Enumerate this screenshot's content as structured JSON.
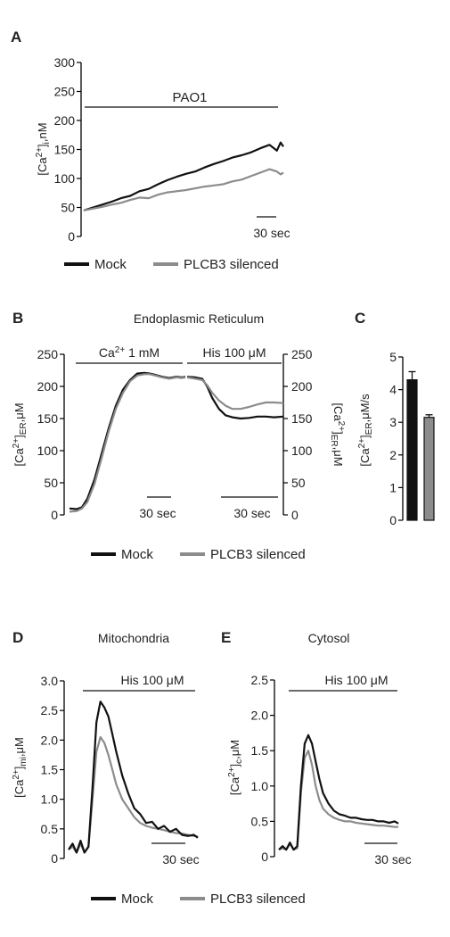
{
  "colors": {
    "mock": "#111111",
    "plcb3": "#8c8c8c",
    "text": "#222222"
  },
  "legend": {
    "mock_label": "Mock",
    "plcb3_label": "PLCB3 silenced"
  },
  "chart_data": [
    {
      "panel": "A",
      "type": "line",
      "ylabel": "[Ca2+]i,nM",
      "ylim": [
        0,
        300
      ],
      "yticks": [
        0,
        50,
        100,
        150,
        200,
        250,
        300
      ],
      "x_unit": "sec",
      "xlim": [
        0,
        215
      ],
      "stim_label": "PAO1",
      "scale_bar": "30 sec",
      "series": [
        {
          "name": "Mock",
          "x": [
            0,
            10,
            20,
            30,
            40,
            50,
            60,
            70,
            80,
            90,
            100,
            110,
            120,
            130,
            140,
            150,
            160,
            170,
            180,
            190,
            200,
            208,
            212,
            215
          ],
          "y": [
            45,
            50,
            55,
            60,
            66,
            70,
            78,
            82,
            90,
            97,
            103,
            108,
            112,
            119,
            125,
            130,
            136,
            140,
            145,
            152,
            158,
            148,
            162,
            155
          ]
        },
        {
          "name": "PLCB3 silenced",
          "x": [
            0,
            10,
            20,
            30,
            40,
            50,
            60,
            70,
            80,
            90,
            100,
            110,
            120,
            130,
            140,
            150,
            160,
            170,
            180,
            190,
            200,
            208,
            212,
            215
          ],
          "y": [
            45,
            48,
            51,
            55,
            58,
            63,
            67,
            66,
            72,
            76,
            78,
            80,
            83,
            86,
            88,
            90,
            95,
            98,
            104,
            110,
            116,
            112,
            107,
            110
          ]
        }
      ]
    },
    {
      "panel": "B",
      "type": "line",
      "title": "Endoplasmic Reticulum",
      "ylabel": "[Ca2+]ER,μM",
      "ylabel_right": "[Ca2+]ER,μM",
      "ylim": [
        0,
        250
      ],
      "yticks": [
        0,
        50,
        100,
        150,
        200,
        250
      ],
      "x_unit": "sec",
      "segments": [
        {
          "stim_label": "Ca2+ 1 mM",
          "scale_bar": "30 sec",
          "xlim": [
            0,
            130
          ],
          "series": [
            {
              "name": "Mock",
              "x": [
                0,
                8,
                14,
                20,
                28,
                36,
                44,
                52,
                60,
                68,
                76,
                84,
                90,
                96,
                104,
                112,
                120,
                126,
                130
              ],
              "y": [
                10,
                9,
                12,
                25,
                55,
                95,
                135,
                170,
                195,
                210,
                220,
                221,
                220,
                218,
                215,
                213,
                215,
                214,
                215
              ]
            },
            {
              "name": "PLCB3 silenced",
              "x": [
                0,
                8,
                14,
                20,
                28,
                36,
                44,
                52,
                60,
                68,
                76,
                84,
                90,
                96,
                104,
                112,
                120,
                126,
                130
              ],
              "y": [
                5,
                6,
                10,
                20,
                48,
                88,
                130,
                165,
                190,
                208,
                217,
                219,
                219,
                217,
                214,
                212,
                214,
                213,
                214
              ]
            }
          ]
        },
        {
          "stim_label": "His 100 μM",
          "scale_bar": "30 sec",
          "xlim": [
            0,
            115
          ],
          "series": [
            {
              "name": "Mock",
              "x": [
                0,
                10,
                18,
                24,
                30,
                38,
                46,
                54,
                64,
                74,
                84,
                94,
                104,
                115
              ],
              "y": [
                215,
                214,
                212,
                200,
                182,
                165,
                155,
                152,
                150,
                151,
                153,
                153,
                152,
                153
              ]
            },
            {
              "name": "PLCB3 silenced",
              "x": [
                0,
                10,
                18,
                24,
                30,
                38,
                46,
                54,
                64,
                74,
                84,
                94,
                104,
                115
              ],
              "y": [
                214,
                212,
                210,
                202,
                190,
                178,
                170,
                165,
                165,
                168,
                172,
                175,
                175,
                174
              ]
            }
          ]
        }
      ]
    },
    {
      "panel": "C",
      "type": "bar",
      "ylabel": "[Ca2+]ER,μM/s",
      "ylim": [
        0,
        5
      ],
      "yticks": [
        0,
        1,
        2,
        3,
        4,
        5
      ],
      "categories": [
        "Mock",
        "PLCB3 silenced"
      ],
      "values": [
        4.3,
        3.15
      ],
      "errors": [
        0.25,
        0.08
      ]
    },
    {
      "panel": "D",
      "type": "line",
      "title": "Mitochondria",
      "ylabel": "[Ca2+]mi,μM",
      "ylim": [
        0,
        3.0
      ],
      "yticks": [
        0,
        0.5,
        1.0,
        1.5,
        2.0,
        2.5,
        3.0
      ],
      "ytick_labels": [
        "0",
        "0.5",
        "1.0",
        "1.5",
        "2.0",
        "2.5",
        "3.0"
      ],
      "x_unit": "sec",
      "xlim": [
        0,
        130
      ],
      "stim_label": "His 100 μM",
      "scale_bar": "30 sec",
      "series": [
        {
          "name": "Mock",
          "x": [
            0,
            4,
            8,
            12,
            16,
            20,
            24,
            28,
            32,
            36,
            40,
            44,
            48,
            54,
            60,
            66,
            72,
            78,
            84,
            90,
            96,
            102,
            108,
            114,
            120,
            126,
            130
          ],
          "y": [
            0.15,
            0.25,
            0.1,
            0.3,
            0.1,
            0.2,
            1.2,
            2.3,
            2.65,
            2.55,
            2.4,
            2.1,
            1.8,
            1.4,
            1.1,
            0.85,
            0.75,
            0.6,
            0.62,
            0.5,
            0.55,
            0.45,
            0.5,
            0.4,
            0.38,
            0.4,
            0.35
          ]
        },
        {
          "name": "PLCB3 silenced",
          "x": [
            0,
            4,
            8,
            12,
            16,
            20,
            24,
            28,
            32,
            36,
            40,
            44,
            48,
            54,
            60,
            66,
            72,
            78,
            84,
            90,
            96,
            102,
            108,
            114,
            120,
            126,
            130
          ],
          "y": [
            0.15,
            0.2,
            0.1,
            0.25,
            0.1,
            0.2,
            1.0,
            1.8,
            2.05,
            1.95,
            1.75,
            1.5,
            1.25,
            1.0,
            0.85,
            0.7,
            0.6,
            0.55,
            0.52,
            0.5,
            0.48,
            0.45,
            0.43,
            0.42,
            0.4,
            0.38,
            0.37
          ]
        }
      ]
    },
    {
      "panel": "E",
      "type": "line",
      "title": "Cytosol",
      "ylabel": "[Ca2+]c,μM",
      "ylim": [
        0,
        2.5
      ],
      "yticks": [
        0,
        0.5,
        1.0,
        1.5,
        2.0,
        2.5
      ],
      "ytick_labels": [
        "0",
        "0.5",
        "1.0",
        "1.5",
        "2.0",
        "2.5"
      ],
      "x_unit": "sec",
      "xlim": [
        0,
        130
      ],
      "stim_label": "His 100 μM",
      "scale_bar": "30 sec",
      "series": [
        {
          "name": "Mock",
          "x": [
            0,
            4,
            8,
            12,
            16,
            20,
            24,
            28,
            32,
            36,
            40,
            44,
            48,
            54,
            60,
            66,
            72,
            78,
            84,
            90,
            96,
            102,
            108,
            114,
            120,
            126,
            130
          ],
          "y": [
            0.1,
            0.15,
            0.1,
            0.2,
            0.1,
            0.15,
            1.0,
            1.6,
            1.72,
            1.6,
            1.35,
            1.1,
            0.9,
            0.75,
            0.65,
            0.6,
            0.58,
            0.55,
            0.55,
            0.53,
            0.52,
            0.52,
            0.5,
            0.5,
            0.48,
            0.5,
            0.47
          ]
        },
        {
          "name": "PLCB3 silenced",
          "x": [
            0,
            4,
            8,
            12,
            16,
            20,
            24,
            28,
            32,
            36,
            40,
            44,
            48,
            54,
            60,
            66,
            72,
            78,
            84,
            90,
            96,
            102,
            108,
            114,
            120,
            126,
            130
          ],
          "y": [
            0.1,
            0.12,
            0.1,
            0.18,
            0.1,
            0.12,
            0.9,
            1.4,
            1.5,
            1.3,
            1.0,
            0.8,
            0.68,
            0.6,
            0.55,
            0.52,
            0.5,
            0.5,
            0.48,
            0.47,
            0.46,
            0.45,
            0.44,
            0.44,
            0.43,
            0.42,
            0.42
          ]
        }
      ]
    }
  ],
  "panel_letters": {
    "A": "A",
    "B": "B",
    "C": "C",
    "D": "D",
    "E": "E"
  }
}
